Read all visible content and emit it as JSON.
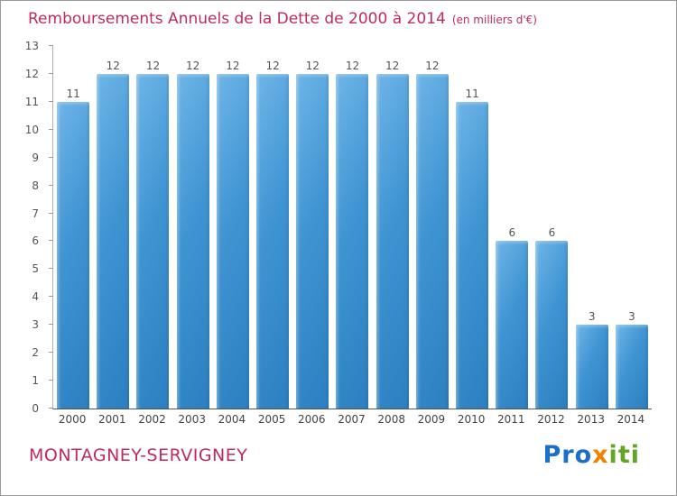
{
  "header": {
    "title": "Remboursements Annuels de la Dette de 2000 à 2014",
    "subtitle": "(en milliers d'€)"
  },
  "chart_data": {
    "type": "bar",
    "title": "Remboursements Annuels de la Dette de 2000 à 2014",
    "subtitle": "(en milliers d'€)",
    "categories": [
      "2000",
      "2001",
      "2002",
      "2003",
      "2004",
      "2005",
      "2006",
      "2007",
      "2008",
      "2009",
      "2010",
      "2011",
      "2012",
      "2013",
      "2014"
    ],
    "values": [
      11,
      12,
      12,
      12,
      12,
      12,
      12,
      12,
      12,
      12,
      11,
      6,
      6,
      3,
      3
    ],
    "xlabel": "",
    "ylabel": "",
    "ylim": [
      0,
      13
    ],
    "y_ticks": [
      0,
      1,
      2,
      3,
      4,
      5,
      6,
      7,
      8,
      9,
      10,
      11,
      12,
      13
    ],
    "grid": false,
    "legend": false,
    "value_labels": true
  },
  "colors": {
    "title": "#c02b5b",
    "bar_top": "#6fb5e8",
    "bar_bottom": "#2c7fc0",
    "value_label": "#555555",
    "axis_label": "#444444"
  },
  "footer": {
    "commune": "MONTAGNEY-SERVIGNEY",
    "logo_letters": [
      {
        "ch": "P",
        "color": "#1b6fc6"
      },
      {
        "ch": "r",
        "color": "#1b6fc6"
      },
      {
        "ch": "o",
        "color": "#1b6fc6"
      },
      {
        "ch": "x",
        "color": "#f08300"
      },
      {
        "ch": "i",
        "color": "#61a624"
      },
      {
        "ch": "t",
        "color": "#61a624"
      },
      {
        "ch": "i",
        "color": "#61a624"
      }
    ]
  }
}
